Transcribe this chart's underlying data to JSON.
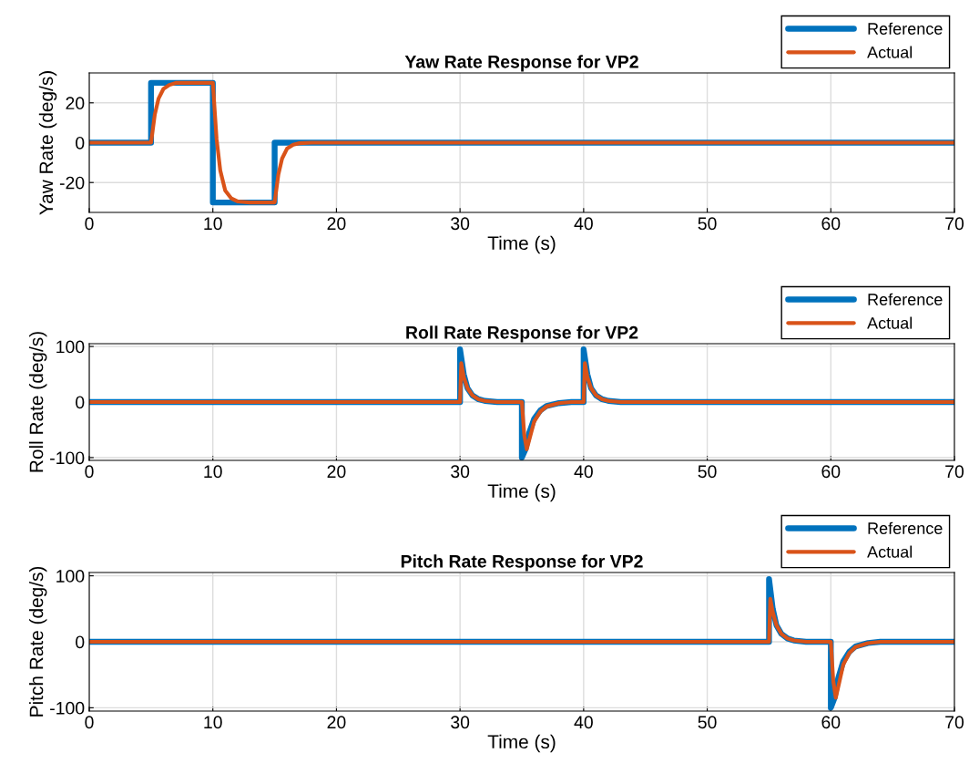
{
  "chart_data": [
    {
      "type": "line",
      "title": "Yaw Rate Response for VP2",
      "xlabel": "Time (s)",
      "ylabel": "Yaw Rate (deg/s)",
      "xlim": [
        0,
        70
      ],
      "xticks": [
        0,
        10,
        20,
        30,
        40,
        50,
        60,
        70
      ],
      "ylim": [
        -35,
        35
      ],
      "yticks": [
        -20,
        0,
        20
      ],
      "grid": true,
      "legend": "top right",
      "series": [
        {
          "name": "Reference",
          "color": "#0072bd",
          "x": [
            0,
            5,
            5,
            10,
            10,
            15,
            15,
            70
          ],
          "values": [
            0,
            0,
            30,
            30,
            -30,
            -30,
            0,
            0
          ]
        },
        {
          "name": "Actual",
          "color": "#d95319",
          "x": [
            0,
            5,
            5.3,
            5.6,
            6,
            6.5,
            7,
            8,
            10,
            10.3,
            10.6,
            11,
            11.5,
            12,
            13,
            15,
            15.3,
            15.6,
            16,
            16.5,
            17,
            18,
            70
          ],
          "values": [
            0,
            0,
            14,
            22,
            27,
            29,
            30,
            30,
            30,
            2,
            -14,
            -24,
            -28,
            -29.5,
            -30,
            -30,
            -16,
            -8,
            -3,
            -1,
            -0.3,
            0,
            0
          ]
        }
      ]
    },
    {
      "type": "line",
      "title": "Roll Rate Response for VP2",
      "xlabel": "Time (s)",
      "ylabel": "Roll Rate (deg/s)",
      "xlim": [
        0,
        70
      ],
      "xticks": [
        0,
        10,
        20,
        30,
        40,
        50,
        60,
        70
      ],
      "ylim": [
        -105,
        105
      ],
      "yticks": [
        -100,
        0,
        100
      ],
      "grid": true,
      "legend": "top right",
      "series": [
        {
          "name": "Reference",
          "color": "#0072bd",
          "x": [
            0,
            30,
            30,
            30.3,
            30.6,
            31,
            31.5,
            32,
            33,
            35,
            35,
            35.3,
            35.6,
            36,
            36.5,
            37,
            38,
            39,
            40,
            40,
            40.3,
            40.6,
            41,
            41.5,
            42,
            43,
            70
          ],
          "values": [
            0,
            0,
            95,
            50,
            25,
            12,
            5,
            2,
            0,
            0,
            -100,
            -85,
            -55,
            -30,
            -15,
            -7,
            -2,
            0,
            0,
            95,
            50,
            25,
            12,
            5,
            2,
            0,
            0
          ]
        },
        {
          "name": "Actual",
          "color": "#d95319",
          "x": [
            0,
            30,
            30.1,
            30.3,
            30.6,
            31,
            31.5,
            32,
            33,
            35,
            35.2,
            35.4,
            35.7,
            36,
            36.5,
            37,
            38,
            39,
            40,
            40.1,
            40.3,
            40.6,
            41,
            41.5,
            42,
            43,
            70
          ],
          "values": [
            0,
            0,
            70,
            45,
            25,
            12,
            5,
            2,
            0,
            0,
            -60,
            -85,
            -60,
            -35,
            -17,
            -8,
            -2,
            0,
            0,
            70,
            45,
            25,
            12,
            5,
            2,
            0,
            0
          ]
        }
      ]
    },
    {
      "type": "line",
      "title": "Pitch Rate Response for VP2",
      "xlabel": "Time (s)",
      "ylabel": "Pitch Rate (deg/s)",
      "xlim": [
        0,
        70
      ],
      "xticks": [
        0,
        10,
        20,
        30,
        40,
        50,
        60,
        70
      ],
      "ylim": [
        -105,
        105
      ],
      "yticks": [
        -100,
        0,
        100
      ],
      "grid": true,
      "legend": "top right",
      "series": [
        {
          "name": "Reference",
          "color": "#0072bd",
          "x": [
            0,
            55,
            55,
            55.3,
            55.6,
            56,
            56.5,
            57,
            58,
            60,
            60,
            60.3,
            60.6,
            61,
            61.5,
            62,
            63,
            64,
            70
          ],
          "values": [
            0,
            0,
            95,
            50,
            25,
            12,
            5,
            2,
            0,
            0,
            -100,
            -85,
            -55,
            -30,
            -15,
            -7,
            -2,
            0,
            0
          ]
        },
        {
          "name": "Actual",
          "color": "#d95319",
          "x": [
            0,
            55,
            55.1,
            55.3,
            55.6,
            56,
            56.5,
            57,
            58,
            60,
            60.2,
            60.4,
            60.7,
            61,
            61.5,
            62,
            63,
            64,
            70
          ],
          "values": [
            0,
            0,
            65,
            45,
            25,
            12,
            5,
            2,
            0,
            0,
            -60,
            -85,
            -60,
            -35,
            -17,
            -8,
            -2,
            0,
            0
          ]
        }
      ]
    }
  ]
}
